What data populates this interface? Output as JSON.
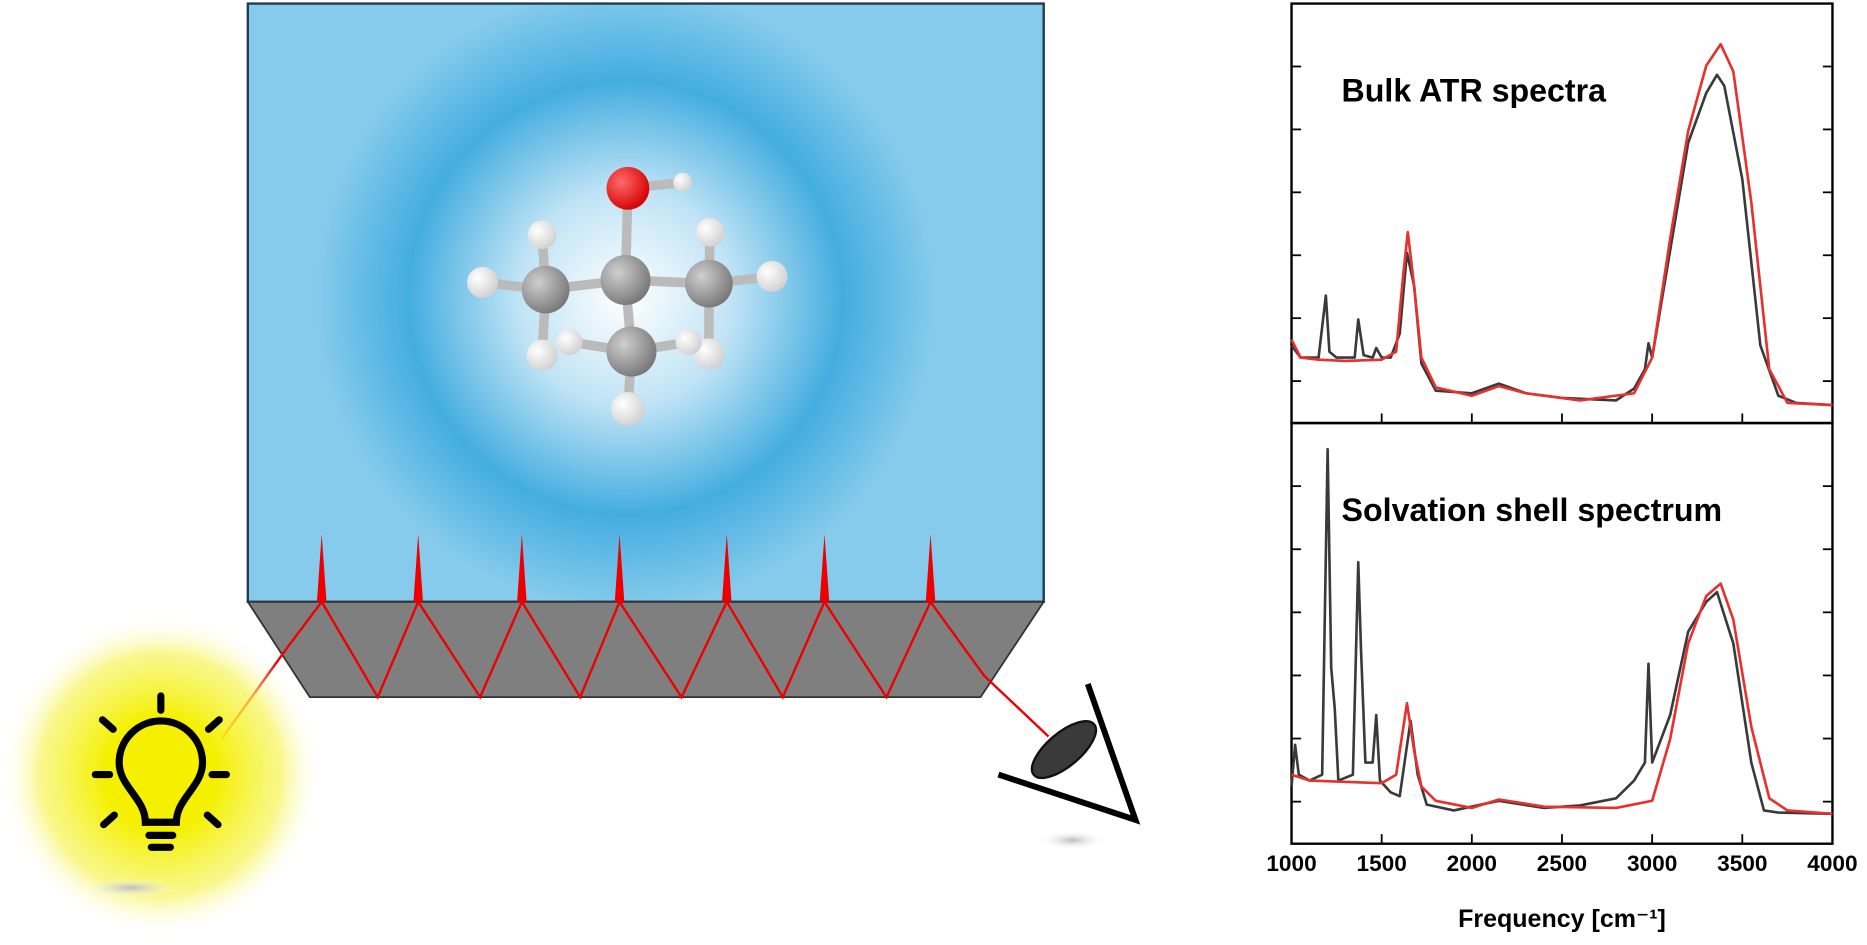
{
  "chart_data": [
    {
      "type": "line",
      "title": "Bulk ATR spectra",
      "xlim": [
        1000,
        4000
      ],
      "ylim": [
        0,
        100
      ],
      "yticks": [
        10,
        25,
        40,
        55,
        70,
        85
      ],
      "series": [
        {
          "color": "#3a3a3a",
          "x": [
            1000,
            1050,
            1150,
            1190,
            1210,
            1250,
            1350,
            1370,
            1400,
            1450,
            1470,
            1500,
            1550,
            1600,
            1640,
            1680,
            1720,
            1800,
            2000,
            2150,
            2300,
            2500,
            2800,
            2900,
            2960,
            2980,
            3000,
            3100,
            3200,
            3300,
            3360,
            3400,
            3500,
            3600,
            3700,
            3800,
            4000
          ],
          "values": [
            18.5,
            15.6,
            15.6,
            30.4,
            17.0,
            15.6,
            15.6,
            24.7,
            16.2,
            15.6,
            17.9,
            15.6,
            15.6,
            21.3,
            40.6,
            32.7,
            14.2,
            7.7,
            7.1,
            9.4,
            7.1,
            6.0,
            5.4,
            8.2,
            12.8,
            19.0,
            15.6,
            41.2,
            66.8,
            78.7,
            83.0,
            80.4,
            58.2,
            18.5,
            6.5,
            4.8,
            4.3
          ]
        },
        {
          "color": "#e8302f",
          "x": [
            1000,
            1050,
            1150,
            1300,
            1500,
            1580,
            1620,
            1645,
            1680,
            1720,
            1800,
            2000,
            2150,
            2300,
            2600,
            2900,
            3000,
            3100,
            3200,
            3300,
            3380,
            3450,
            3550,
            3650,
            3750,
            4000
          ],
          "values": [
            19.9,
            15.6,
            15.1,
            14.8,
            15.1,
            17.0,
            35.5,
            45.5,
            32.7,
            15.6,
            8.5,
            6.5,
            8.8,
            7.1,
            5.4,
            7.1,
            15.6,
            44.0,
            69.6,
            85.2,
            90.3,
            83.8,
            52.6,
            12.8,
            4.8,
            4.3
          ]
        }
      ]
    },
    {
      "type": "line",
      "title": "Solvation shell spectrum",
      "xlabel": "Frequency [cm⁻¹]",
      "xlim": [
        1000,
        4000
      ],
      "ylim": [
        0,
        100
      ],
      "xticks": [
        1000,
        1500,
        2000,
        2500,
        3000,
        3500,
        4000
      ],
      "yticks": [
        10,
        25,
        40,
        55,
        70,
        85
      ],
      "series": [
        {
          "color": "#3a3a3a",
          "x": [
            1000,
            1020,
            1040,
            1100,
            1170,
            1200,
            1220,
            1240,
            1260,
            1340,
            1370,
            1385,
            1410,
            1450,
            1470,
            1490,
            1550,
            1600,
            1660,
            1700,
            1750,
            1900,
            2150,
            2400,
            2600,
            2800,
            2900,
            2960,
            2980,
            3000,
            3100,
            3200,
            3300,
            3360,
            3450,
            3550,
            3620,
            3700,
            4000
          ],
          "values": [
            13.6,
            23.5,
            16.4,
            15.0,
            16.4,
            93.8,
            41.9,
            32.0,
            15.0,
            16.4,
            66.9,
            46.2,
            19.3,
            19.3,
            30.6,
            15.0,
            12.2,
            11.3,
            29.2,
            16.4,
            9.3,
            7.9,
            10.2,
            8.5,
            9.1,
            10.8,
            15.0,
            19.3,
            42.8,
            19.3,
            30.6,
            50.4,
            57.5,
            59.8,
            47.6,
            19.3,
            7.9,
            7.4,
            7.1
          ]
        },
        {
          "color": "#e8302f",
          "x": [
            1000,
            1100,
            1500,
            1580,
            1640,
            1680,
            1720,
            1800,
            2000,
            2150,
            2400,
            2800,
            3000,
            3100,
            3200,
            3300,
            3380,
            3450,
            3550,
            3650,
            3750,
            4000
          ],
          "values": [
            16.4,
            15.0,
            14.4,
            16.4,
            33.4,
            22.1,
            13.6,
            10.2,
            8.5,
            10.5,
            8.8,
            8.5,
            10.2,
            24.9,
            47.6,
            58.9,
            61.8,
            53.3,
            27.8,
            10.8,
            7.9,
            7.1
          ]
        }
      ]
    }
  ]
}
